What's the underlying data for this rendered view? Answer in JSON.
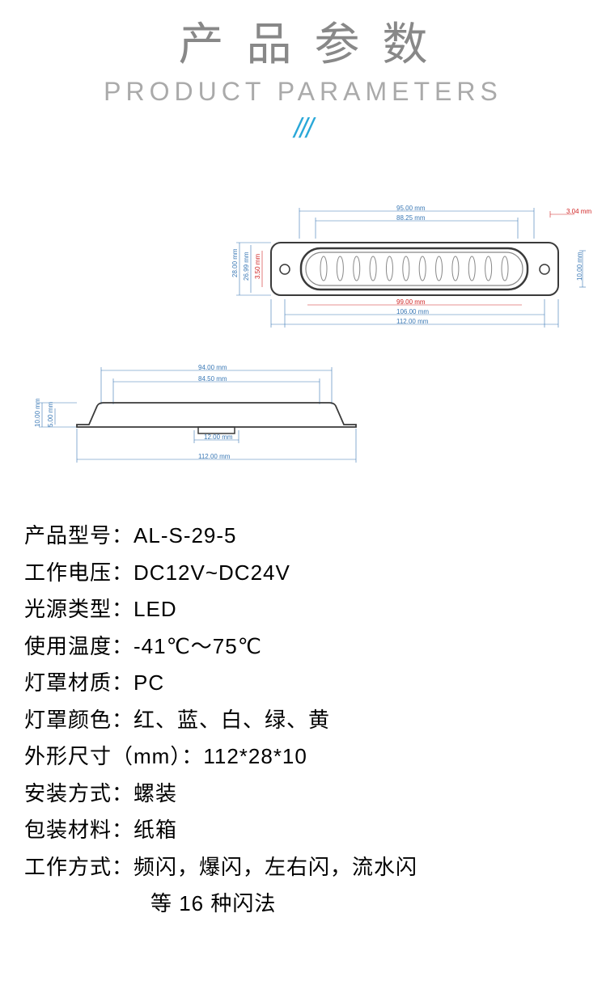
{
  "header": {
    "title_cn": "产品参数",
    "title_en": "PRODUCT  PARAMETERS",
    "slashes": "///"
  },
  "diagram_front": {
    "dims": {
      "top1": "95.00 mm",
      "top2": "88.25 mm",
      "right_red": "3.04 mm",
      "left1": "28.00 mm",
      "left2": "26.99 mm",
      "left_red": "3.50 mm",
      "right1": "10.00 mm",
      "bot_red": "99.00 mm",
      "bot1": "106.00 mm",
      "bot2": "112.00 mm"
    },
    "colors": {
      "body": "#3a3a3a",
      "inner": "#888888",
      "dim_line": "#3a78b5",
      "dim_red": "#d02525"
    },
    "led_count": 12
  },
  "diagram_side": {
    "dims": {
      "top1": "94.00 mm",
      "top2": "84.50 mm",
      "left1": "10.00 mm",
      "left2": "5.00 mm",
      "bot1": "12.00 mm",
      "bot2": "112.00 mm"
    },
    "colors": {
      "body": "#3a3a3a",
      "dim_line": "#3a78b5"
    }
  },
  "specs": [
    {
      "label": "产品型号：",
      "value": "AL-S-29-5"
    },
    {
      "label": "工作电压：",
      "value": "DC12V~DC24V"
    },
    {
      "label": "光源类型：",
      "value": "LED"
    },
    {
      "label": "使用温度：",
      "value": "-41℃～75℃"
    },
    {
      "label": "灯罩材质：",
      "value": "PC"
    },
    {
      "label": "灯罩颜色：",
      "value": "红、蓝、白、绿、黄"
    },
    {
      "label": "外形尺寸（mm）：",
      "value": "112*28*10"
    },
    {
      "label": "安装方式：",
      "value": "螺装"
    },
    {
      "label": "包装材料：",
      "value": "纸箱"
    },
    {
      "label": "工作方式：",
      "value": "频闪，爆闪，左右闪，流水闪"
    }
  ],
  "specs_cont": "等 16 种闪法",
  "style": {
    "text_color": "#000000",
    "title_cn_color": "#888888",
    "title_en_color": "#aaaaaa",
    "accent_color": "#2aa8d8"
  }
}
